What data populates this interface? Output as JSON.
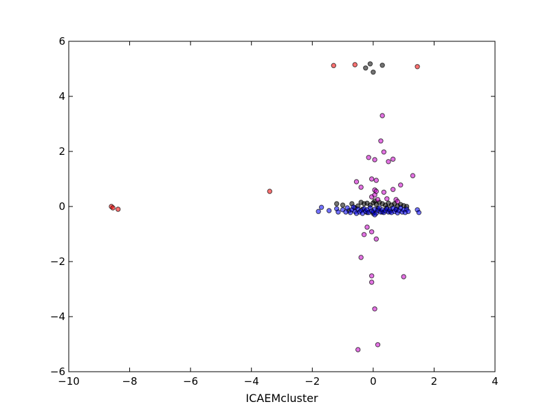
{
  "chart_data": {
    "type": "scatter",
    "title": "",
    "xlabel": "ICAEMcluster",
    "ylabel": "",
    "xlim": [
      -10,
      4
    ],
    "ylim": [
      -6,
      6
    ],
    "grid": false,
    "x_ticks": [
      -10,
      -8,
      -6,
      -4,
      -2,
      0,
      2,
      4
    ],
    "y_ticks": [
      -6,
      -4,
      -2,
      0,
      2,
      4,
      6
    ],
    "x_tick_labels": [
      "−10",
      "−8",
      "−6",
      "−4",
      "−2",
      "0",
      "2",
      "4"
    ],
    "y_tick_labels": [
      "−6",
      "−4",
      "−2",
      "0",
      "2",
      "4",
      "6"
    ],
    "marker_opacity": 0.55,
    "series": [
      {
        "color": "#ff0000",
        "points": [
          [
            -8.6,
            0.0
          ],
          [
            -8.55,
            -0.05
          ],
          [
            -8.38,
            -0.1
          ],
          [
            -3.4,
            0.55
          ],
          [
            -1.3,
            5.12
          ],
          [
            -0.6,
            5.15
          ],
          [
            1.45,
            5.08
          ]
        ]
      },
      {
        "color": "#000000",
        "points": [
          [
            -0.25,
            5.03
          ],
          [
            -0.1,
            5.18
          ],
          [
            0.0,
            4.88
          ],
          [
            0.3,
            5.13
          ],
          [
            -1.2,
            0.1
          ],
          [
            -1.0,
            0.05
          ],
          [
            -0.7,
            0.1
          ],
          [
            -0.5,
            0.02
          ],
          [
            -0.4,
            0.15
          ],
          [
            -0.3,
            0.1
          ],
          [
            -0.2,
            0.12
          ],
          [
            -0.1,
            0.05
          ],
          [
            0.0,
            0.13
          ],
          [
            0.05,
            0.2
          ],
          [
            0.1,
            0.08
          ],
          [
            0.2,
            0.15
          ],
          [
            0.3,
            0.1
          ],
          [
            0.4,
            0.05
          ],
          [
            0.5,
            0.12
          ],
          [
            0.6,
            0.05
          ],
          [
            0.7,
            0.1
          ],
          [
            0.8,
            0.02
          ],
          [
            0.9,
            0.07
          ],
          [
            1.0,
            0.03
          ],
          [
            1.1,
            0.0
          ],
          [
            -0.6,
            -0.05
          ],
          [
            -0.35,
            -0.1
          ],
          [
            0.15,
            -0.08
          ],
          [
            0.45,
            -0.05
          ],
          [
            0.75,
            -0.12
          ],
          [
            -0.8,
            -0.15
          ],
          [
            0.0,
            -0.25
          ],
          [
            0.3,
            -0.2
          ],
          [
            -0.2,
            -0.22
          ],
          [
            0.55,
            -0.18
          ]
        ]
      },
      {
        "color": "#0000ff",
        "points": [
          [
            -1.8,
            -0.18
          ],
          [
            -1.7,
            -0.03
          ],
          [
            -1.45,
            -0.15
          ],
          [
            -1.2,
            -0.08
          ],
          [
            -1.15,
            -0.2
          ],
          [
            -1.0,
            -0.12
          ],
          [
            -0.9,
            -0.2
          ],
          [
            -0.85,
            -0.05
          ],
          [
            -0.75,
            -0.22
          ],
          [
            -0.7,
            -0.12
          ],
          [
            -0.6,
            -0.18
          ],
          [
            -0.55,
            -0.25
          ],
          [
            -0.5,
            -0.1
          ],
          [
            -0.45,
            -0.2
          ],
          [
            -0.4,
            -0.15
          ],
          [
            -0.35,
            -0.25
          ],
          [
            -0.3,
            -0.08
          ],
          [
            -0.25,
            -0.18
          ],
          [
            -0.2,
            -0.12
          ],
          [
            -0.15,
            -0.22
          ],
          [
            -0.1,
            -0.05
          ],
          [
            -0.05,
            -0.16
          ],
          [
            0.0,
            -0.2
          ],
          [
            0.05,
            -0.1
          ],
          [
            0.1,
            -0.24
          ],
          [
            0.15,
            -0.14
          ],
          [
            0.2,
            -0.05
          ],
          [
            0.25,
            -0.2
          ],
          [
            0.3,
            -0.12
          ],
          [
            0.35,
            -0.22
          ],
          [
            0.4,
            -0.15
          ],
          [
            0.45,
            -0.08
          ],
          [
            0.5,
            -0.2
          ],
          [
            0.55,
            -0.12
          ],
          [
            0.6,
            -0.22
          ],
          [
            0.65,
            -0.06
          ],
          [
            0.7,
            -0.18
          ],
          [
            0.75,
            -0.1
          ],
          [
            0.8,
            -0.23
          ],
          [
            0.85,
            -0.15
          ],
          [
            0.9,
            -0.05
          ],
          [
            0.95,
            -0.2
          ],
          [
            1.0,
            -0.12
          ],
          [
            1.05,
            -0.22
          ],
          [
            1.1,
            -0.1
          ],
          [
            1.15,
            -0.18
          ],
          [
            1.45,
            -0.12
          ],
          [
            1.5,
            -0.22
          ],
          [
            -0.65,
            -0.02
          ],
          [
            0.05,
            -0.3
          ]
        ]
      },
      {
        "color": "#cc00cc",
        "points": [
          [
            0.3,
            3.3
          ],
          [
            0.25,
            2.38
          ],
          [
            0.35,
            1.98
          ],
          [
            -0.15,
            1.78
          ],
          [
            0.05,
            1.7
          ],
          [
            0.5,
            1.63
          ],
          [
            0.65,
            1.72
          ],
          [
            1.3,
            1.12
          ],
          [
            -0.05,
            1.0
          ],
          [
            0.1,
            0.95
          ],
          [
            -0.55,
            0.9
          ],
          [
            0.9,
            0.78
          ],
          [
            -0.4,
            0.7
          ],
          [
            0.65,
            0.62
          ],
          [
            0.05,
            0.6
          ],
          [
            0.1,
            0.55
          ],
          [
            0.35,
            0.52
          ],
          [
            -0.05,
            0.35
          ],
          [
            0.05,
            0.42
          ],
          [
            0.15,
            0.25
          ],
          [
            0.45,
            0.28
          ],
          [
            0.75,
            0.25
          ],
          [
            0.8,
            0.18
          ],
          [
            -0.2,
            -0.75
          ],
          [
            -0.05,
            -0.92
          ],
          [
            -0.3,
            -1.02
          ],
          [
            0.1,
            -1.18
          ],
          [
            -0.4,
            -1.85
          ],
          [
            -0.05,
            -2.52
          ],
          [
            1.0,
            -2.55
          ],
          [
            -0.05,
            -2.75
          ],
          [
            0.05,
            -3.72
          ],
          [
            0.15,
            -5.02
          ],
          [
            -0.5,
            -5.2
          ]
        ]
      }
    ]
  }
}
